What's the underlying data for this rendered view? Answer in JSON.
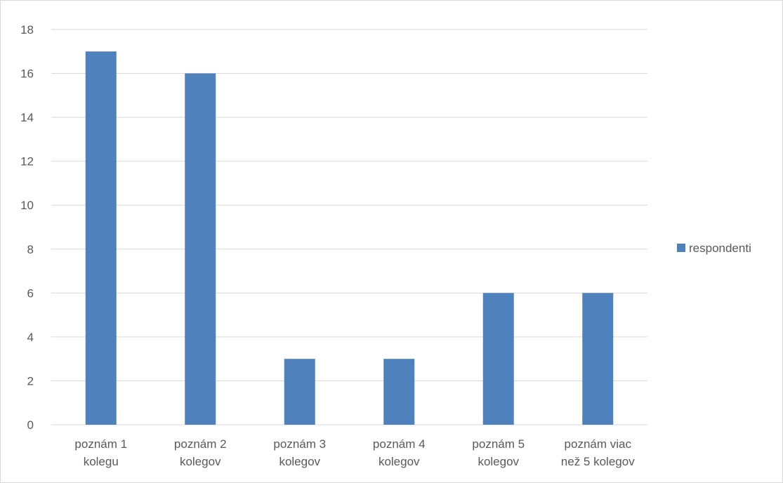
{
  "chart_data": {
    "type": "bar",
    "title": "",
    "xlabel": "",
    "ylabel": "",
    "categories": [
      [
        "poznám 1",
        "kolegu"
      ],
      [
        "poznám 2",
        "kolegov"
      ],
      [
        "poznám 3",
        "kolegov"
      ],
      [
        "poznám 4",
        "kolegov"
      ],
      [
        "poznám 5",
        "kolegov"
      ],
      [
        "poznám viac",
        "než 5 kolegov"
      ]
    ],
    "series": [
      {
        "name": "respondenti",
        "values": [
          17,
          16,
          3,
          3,
          6,
          6
        ],
        "color": "#4f81bd"
      }
    ],
    "ylim": [
      0,
      18
    ],
    "yticks": [
      0,
      2,
      4,
      6,
      8,
      10,
      12,
      14,
      16,
      18
    ],
    "grid": true,
    "gridColor": "#d9d9d9",
    "legend": {
      "placement": "right",
      "entries": [
        "respondenti"
      ]
    }
  }
}
